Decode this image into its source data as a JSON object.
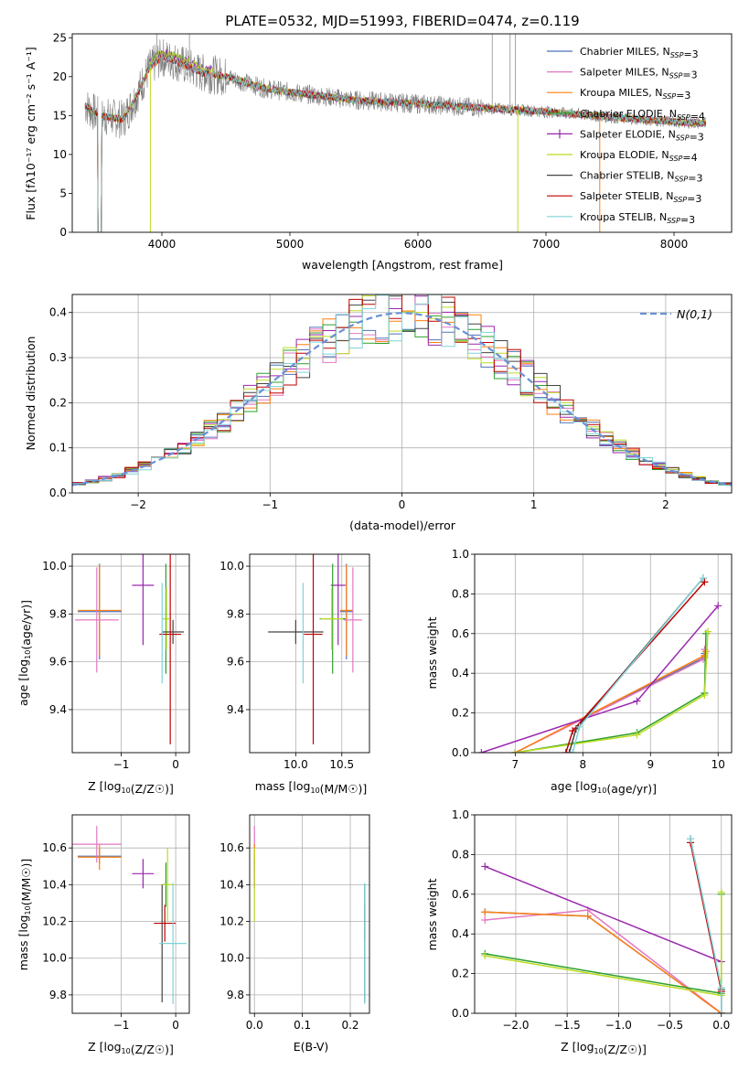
{
  "colors": {
    "chabrier_miles": "#4e72b8",
    "salpeter_miles": "#e377c2",
    "kroupa_miles": "#ff7f0e",
    "chabrier_elodie": "#2ca02c",
    "salpeter_elodie": "#9b27af",
    "kroupa_elodie": "#bcdb22",
    "chabrier_stelib": "#444444",
    "salpeter_stelib": "#c00000",
    "kroupa_stelib": "#7fd3d8",
    "gauss": "#6a90d8",
    "data_spectrum": "#808080"
  },
  "chart_data": [
    {
      "id": "spectrum",
      "type": "line",
      "title": "PLATE=0532, MJD=51993, FIBERID=0474, z=0.119",
      "xlabel": "wavelength [Angstrom, rest frame]",
      "ylabel": "Flux [fλ10⁻¹⁷ erg cm⁻² s⁻¹ A⁻¹]",
      "xlim": [
        3300,
        8450
      ],
      "ylim": [
        0,
        25.5
      ],
      "xticks": [
        4000,
        5000,
        6000,
        7000,
        8000
      ],
      "yticks": [
        0,
        5,
        10,
        15,
        20,
        25
      ],
      "grid": false,
      "legend": "upper-right",
      "legend_entries": [
        "Chabrier MILES, N_SSP=3",
        "Salpeter MILES, N_SSP=3",
        "Kroupa MILES, N_SSP=3",
        "Chabrier ELODIE, N_SSP=4",
        "Salpeter ELODIE, N_SSP=3",
        "Kroupa ELODIE, N_SSP=4",
        "Chabrier STELIB, N_SSP=3",
        "Salpeter STELIB, N_SSP=3",
        "Kroupa STELIB, N_SSP=3"
      ],
      "continuum": {
        "x": [
          3400,
          3500,
          3700,
          3800,
          3900,
          4000,
          4100,
          4300,
          4500,
          4800,
          5000,
          5500,
          6000,
          6500,
          7000,
          7500,
          8000,
          8250
        ],
        "y": [
          16.3,
          15.0,
          14.5,
          17.5,
          21.0,
          22.5,
          22.0,
          20.5,
          20.0,
          18.5,
          18.0,
          17.0,
          16.5,
          16.0,
          15.5,
          14.8,
          14.2,
          14.0
        ]
      }
    },
    {
      "id": "residuals",
      "type": "line",
      "xlabel": "(data-model)/error",
      "ylabel": "Normed distribution",
      "xlim": [
        -2.5,
        2.5
      ],
      "ylim": [
        0,
        0.44
      ],
      "xticks": [
        -2,
        -1,
        0,
        1,
        2
      ],
      "yticks": [
        0.0,
        0.1,
        0.2,
        0.3,
        0.4
      ],
      "grid": true,
      "legend": "upper-right",
      "legend_entries": [
        "N(0,1)"
      ]
    },
    {
      "id": "age_vs_Z",
      "type": "scatter",
      "xlabel": "Z [log10(Z/Z☉)]",
      "ylabel": "age  [log10(age/yr)]",
      "xlim": [
        -1.9,
        0.25
      ],
      "ylim": [
        9.22,
        10.05
      ],
      "xticks": [
        -1,
        0
      ],
      "yticks": [
        9.4,
        9.6,
        9.8,
        10.0
      ],
      "grid": true,
      "points": [
        {
          "model": "chabrier_miles",
          "x": -1.4,
          "y": 9.81,
          "xerr": 0.4,
          "yerr": 0.2
        },
        {
          "model": "kroupa_miles",
          "x": -1.4,
          "y": 9.815,
          "xerr": 0.4,
          "yerr": 0.19
        },
        {
          "model": "salpeter_miles",
          "x": -1.45,
          "y": 9.775,
          "xerr": 0.4,
          "yerr": 0.22
        },
        {
          "model": "salpeter_elodie",
          "x": -0.6,
          "y": 9.92,
          "xerr": 0.2,
          "yerr": 0.25
        },
        {
          "model": "chabrier_elodie",
          "x": -0.18,
          "y": 9.78,
          "xerr": 0.05,
          "yerr": 0.23
        },
        {
          "model": "kroupa_elodie",
          "x": -0.17,
          "y": 9.78,
          "xerr": 0.05,
          "yerr": 0.13
        },
        {
          "model": "chabrier_stelib",
          "x": -0.05,
          "y": 9.725,
          "xerr": 0.2,
          "yerr": 0.05
        },
        {
          "model": "salpeter_stelib",
          "x": -0.1,
          "y": 9.715,
          "xerr": 0.2,
          "yerr": 0.46
        },
        {
          "model": "kroupa_stelib",
          "x": -0.25,
          "y": 9.72,
          "xerr": 0.02,
          "yerr": 0.21
        }
      ]
    },
    {
      "id": "age_vs_mass",
      "type": "scatter",
      "xlabel": "mass [log10(M/M☉)]",
      "ylabel": "",
      "xlim": [
        9.5,
        10.8
      ],
      "ylim": [
        9.22,
        10.05
      ],
      "xticks": [
        10.0,
        10.5
      ],
      "yticks": [
        9.4,
        9.6,
        9.8,
        10.0
      ],
      "grid": true,
      "points": [
        {
          "model": "chabrier_miles",
          "x": 10.55,
          "y": 9.81,
          "xerr": 0.07,
          "yerr": 0.2
        },
        {
          "model": "kroupa_miles",
          "x": 10.55,
          "y": 9.815,
          "xerr": 0.07,
          "yerr": 0.19
        },
        {
          "model": "salpeter_miles",
          "x": 10.62,
          "y": 9.775,
          "xerr": 0.1,
          "yerr": 0.22
        },
        {
          "model": "salpeter_elodie",
          "x": 10.46,
          "y": 9.92,
          "xerr": 0.08,
          "yerr": 0.25
        },
        {
          "model": "chabrier_elodie",
          "x": 10.4,
          "y": 9.78,
          "xerr": 0.14,
          "yerr": 0.23
        },
        {
          "model": "kroupa_elodie",
          "x": 10.39,
          "y": 9.78,
          "xerr": 0.12,
          "yerr": 0.13
        },
        {
          "model": "chabrier_stelib",
          "x": 10.0,
          "y": 9.725,
          "xerr": 0.3,
          "yerr": 0.05
        },
        {
          "model": "salpeter_stelib",
          "x": 10.19,
          "y": 9.715,
          "xerr": 0.1,
          "yerr": 0.46
        },
        {
          "model": "kroupa_stelib",
          "x": 10.08,
          "y": 9.72,
          "xerr": 0.01,
          "yerr": 0.21
        }
      ]
    },
    {
      "id": "weight_vs_age",
      "type": "line",
      "xlabel": "age  [log10(age/yr)]",
      "ylabel": "mass weight",
      "xlim": [
        6.4,
        10.2
      ],
      "ylim": [
        0,
        1.0
      ],
      "xticks": [
        7,
        8,
        9,
        10
      ],
      "yticks": [
        0.0,
        0.2,
        0.4,
        0.6,
        0.8,
        1.0
      ],
      "grid": true,
      "series": [
        {
          "model": "chabrier_miles",
          "x": [
            7.0,
            9.8,
            9.8
          ],
          "y": [
            0.0,
            0.48,
            0.5
          ]
        },
        {
          "model": "salpeter_miles",
          "x": [
            7.0,
            9.78,
            9.8
          ],
          "y": [
            0.0,
            0.47,
            0.52
          ]
        },
        {
          "model": "kroupa_miles",
          "x": [
            7.0,
            9.8,
            9.82
          ],
          "y": [
            0.0,
            0.49,
            0.51
          ]
        },
        {
          "model": "chabrier_elodie",
          "x": [
            7.0,
            8.8,
            9.8,
            9.82
          ],
          "y": [
            0.0,
            0.1,
            0.3,
            0.6
          ]
        },
        {
          "model": "salpeter_elodie",
          "x": [
            6.5,
            8.8,
            10.0
          ],
          "y": [
            0.0,
            0.26,
            0.74
          ]
        },
        {
          "model": "kroupa_elodie",
          "x": [
            7.0,
            8.8,
            9.8,
            9.85
          ],
          "y": [
            0.0,
            0.09,
            0.29,
            0.61
          ]
        },
        {
          "model": "chabrier_stelib",
          "x": [
            7.8,
            7.9,
            9.78
          ],
          "y": [
            0.0,
            0.12,
            0.88
          ]
        },
        {
          "model": "salpeter_stelib",
          "x": [
            7.75,
            7.85,
            9.8
          ],
          "y": [
            0.0,
            0.11,
            0.86
          ]
        },
        {
          "model": "kroupa_stelib",
          "x": [
            7.85,
            7.95,
            9.78
          ],
          "y": [
            0.0,
            0.13,
            0.88
          ]
        }
      ]
    },
    {
      "id": "mass_vs_Z",
      "type": "scatter",
      "xlabel": "Z [log10(Z/Z☉)]",
      "ylabel": "mass [log10(M/M☉)]",
      "xlim": [
        -1.9,
        0.25
      ],
      "ylim": [
        9.7,
        10.78
      ],
      "xticks": [
        -1,
        0
      ],
      "yticks": [
        9.8,
        10.0,
        10.2,
        10.4,
        10.6
      ],
      "grid": true,
      "points": [
        {
          "model": "chabrier_miles",
          "x": -1.4,
          "y": 10.555,
          "xerr": 0.4,
          "yerr": 0.04
        },
        {
          "model": "kroupa_miles",
          "x": -1.4,
          "y": 10.55,
          "xerr": 0.4,
          "yerr": 0.07
        },
        {
          "model": "salpeter_miles",
          "x": -1.45,
          "y": 10.62,
          "xerr": 0.45,
          "yerr": 0.1
        },
        {
          "model": "salpeter_elodie",
          "x": -0.6,
          "y": 10.46,
          "xerr": 0.2,
          "yerr": 0.08
        },
        {
          "model": "chabrier_elodie",
          "x": -0.18,
          "y": 10.4,
          "xerr": 0.05,
          "yerr": 0.12
        },
        {
          "model": "kroupa_elodie",
          "x": -0.15,
          "y": 10.4,
          "xerr": 0.12,
          "yerr": 0.2
        },
        {
          "model": "chabrier_stelib",
          "x": -0.25,
          "y": 10.08,
          "xerr": 0.02,
          "yerr": 0.32
        },
        {
          "model": "salpeter_stelib",
          "x": -0.2,
          "y": 10.19,
          "xerr": 0.2,
          "yerr": 0.1
        },
        {
          "model": "kroupa_stelib",
          "x": -0.05,
          "y": 10.08,
          "xerr": 0.25,
          "yerr": 0.33
        }
      ]
    },
    {
      "id": "mass_vs_ebv",
      "type": "scatter",
      "xlabel": "E(B-V)",
      "ylabel": "",
      "xlim": [
        -0.01,
        0.24
      ],
      "ylim": [
        9.7,
        10.78
      ],
      "xticks": [
        0.0,
        0.1,
        0.2
      ],
      "yticks": [
        9.8,
        10.0,
        10.2,
        10.4,
        10.6
      ],
      "grid": true,
      "points": [
        {
          "model": "salpeter_miles",
          "x": 0.0,
          "y": 10.62,
          "xerr": 0,
          "yerr": 0.1
        },
        {
          "model": "kroupa_miles",
          "x": 0.0,
          "y": 10.55,
          "xerr": 0,
          "yerr": 0.07
        },
        {
          "model": "salpeter_elodie",
          "x": 0.0,
          "y": 10.46,
          "xerr": 0,
          "yerr": 0.08
        },
        {
          "model": "kroupa_elodie",
          "x": 0.0,
          "y": 10.4,
          "xerr": 0,
          "yerr": 0.2
        },
        {
          "model": "salpeter_stelib",
          "x": 0.23,
          "y": 10.19,
          "xerr": 0,
          "yerr": 0.1
        },
        {
          "model": "chabrier_stelib",
          "x": 0.23,
          "y": 10.08,
          "xerr": 0,
          "yerr": 0.32
        },
        {
          "model": "kroupa_stelib",
          "x": 0.23,
          "y": 10.08,
          "xerr": 0,
          "yerr": 0.33
        }
      ]
    },
    {
      "id": "weight_vs_Z",
      "type": "line",
      "xlabel": "Z [log10(Z/Z☉)]",
      "ylabel": "mass weight",
      "xlim": [
        -2.4,
        0.1
      ],
      "ylim": [
        0,
        1.0
      ],
      "xticks": [
        -2.0,
        -1.5,
        -1.0,
        -0.5,
        0.0
      ],
      "yticks": [
        0.0,
        0.2,
        0.4,
        0.6,
        0.8,
        1.0
      ],
      "grid": true,
      "series": [
        {
          "model": "chabrier_miles",
          "x": [
            -2.3,
            -1.3,
            0.0
          ],
          "y": [
            0.51,
            0.49,
            0.0
          ]
        },
        {
          "model": "salpeter_miles",
          "x": [
            -2.3,
            -1.3,
            0.0
          ],
          "y": [
            0.47,
            0.52,
            0.0
          ]
        },
        {
          "model": "kroupa_miles",
          "x": [
            -2.3,
            -1.3,
            0.0
          ],
          "y": [
            0.51,
            0.49,
            0.0
          ]
        },
        {
          "model": "chabrier_elodie",
          "x": [
            -2.3,
            0.0,
            0.0
          ],
          "y": [
            0.3,
            0.1,
            0.6
          ]
        },
        {
          "model": "salpeter_elodie",
          "x": [
            -2.3,
            0.0
          ],
          "y": [
            0.74,
            0.26
          ]
        },
        {
          "model": "kroupa_elodie",
          "x": [
            -2.3,
            0.0,
            0.0
          ],
          "y": [
            0.29,
            0.09,
            0.61
          ]
        },
        {
          "model": "chabrier_stelib",
          "x": [
            -0.3,
            0.0,
            0.0
          ],
          "y": [
            0.88,
            0.12,
            0.0
          ]
        },
        {
          "model": "salpeter_stelib",
          "x": [
            -0.3,
            0.0,
            0.0
          ],
          "y": [
            0.86,
            0.11,
            0.0
          ]
        },
        {
          "model": "kroupa_stelib",
          "x": [
            -0.3,
            0.0,
            0.0
          ],
          "y": [
            0.88,
            0.13,
            0.0
          ]
        }
      ]
    }
  ]
}
